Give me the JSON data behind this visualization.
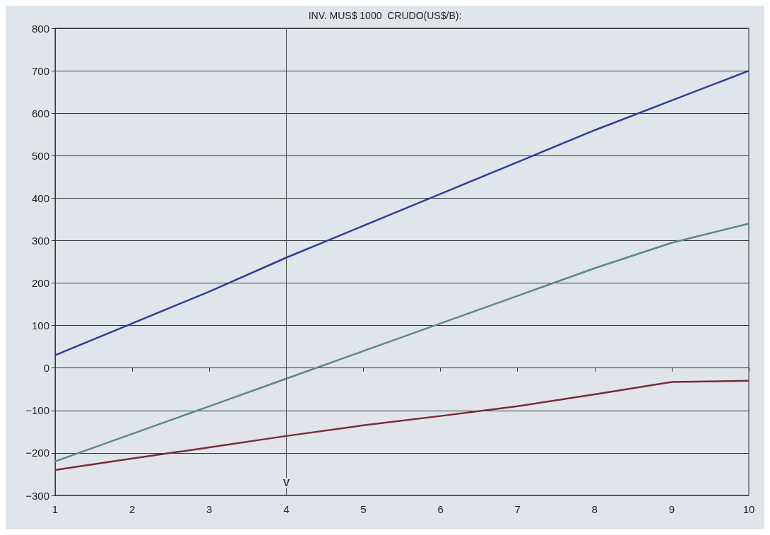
{
  "chart_data": {
    "type": "line",
    "title": "INV. MUS$ 1000  CRUDO(US$/B):",
    "x": [
      1,
      2,
      3,
      4,
      5,
      6,
      7,
      8,
      9,
      10
    ],
    "series": [
      {
        "color": "#2c3e9e",
        "values": [
          30,
          105,
          180,
          260,
          335,
          410,
          485,
          560,
          630,
          700
        ]
      },
      {
        "color": "#5a8a86",
        "values": [
          -220,
          -155,
          -90,
          -25,
          40,
          105,
          170,
          235,
          295,
          340
        ]
      },
      {
        "color": "#7a2a3a",
        "values": [
          -240,
          -213,
          -187,
          -160,
          -135,
          -113,
          -90,
          -62,
          -33,
          -30
        ]
      }
    ],
    "xlim": [
      1,
      10
    ],
    "xticks": [
      1,
      2,
      3,
      4,
      5,
      6,
      7,
      8,
      9,
      10
    ],
    "ylim": [
      -300,
      800
    ],
    "yticks": [
      -300,
      -200,
      -100,
      0,
      100,
      200,
      300,
      400,
      500,
      600,
      700,
      800
    ],
    "grid": "y",
    "marker": "none",
    "line_style": "solid",
    "ref_lines": [
      {
        "axis": "x",
        "value": 4,
        "color": "#555555",
        "line_style": "solid"
      }
    ],
    "annotations": [
      {
        "text": "V",
        "x": 4,
        "y": -270
      }
    ]
  }
}
